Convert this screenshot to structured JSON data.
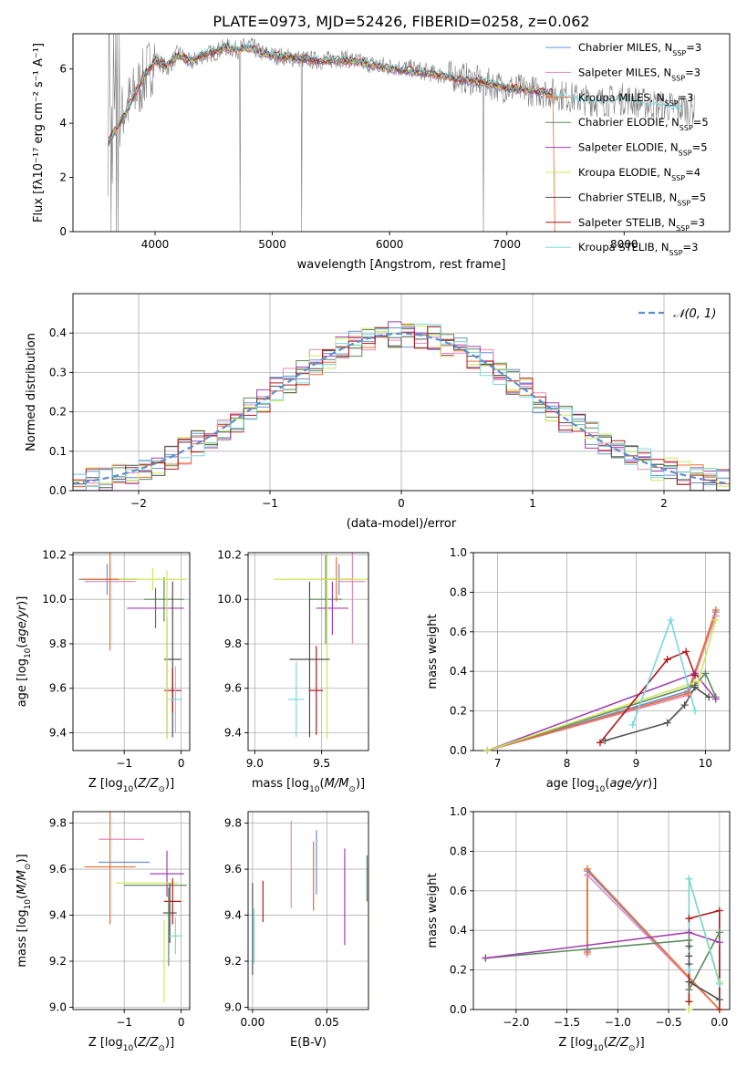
{
  "title": "PLATE=0973, MJD=52426, FIBERID=0258, z=0.062",
  "colors": [
    "#6a8fd6",
    "#e889b5",
    "#e87030",
    "#5d8a5d",
    "#a040b0",
    "#d0e858",
    "#505050",
    "#b01818",
    "#78d8e0"
  ],
  "chart_data": [
    {
      "id": "spectrum",
      "type": "line",
      "xlabel": "wavelength [Angstrom, rest frame]",
      "ylabel": "Flux [f$_\\lambda$10$^{-17}$ erg cm$^{-2}$ s$^{-1}$ A$^{-1}$]",
      "ylabel_display": "Flux [fλ10⁻¹⁷ erg cm⁻² s⁻¹ A⁻¹]",
      "xlim": [
        3300,
        8900
      ],
      "ylim": [
        0,
        7.3
      ],
      "xticks": [
        4000,
        5000,
        6000,
        7000,
        8000
      ],
      "yticks": [
        0,
        2,
        4,
        6
      ],
      "grid": false,
      "legend_position": "top-right",
      "observed": {
        "x": [
          3600,
          3700,
          3800,
          3900,
          4000,
          4100,
          4200,
          4300,
          4400,
          4500,
          4600,
          4700,
          4800,
          4900,
          5000,
          5200,
          5400,
          5600,
          5800,
          6000,
          6200,
          6400,
          6600,
          6800,
          7000,
          7200,
          7400,
          7600,
          7800,
          8000,
          8200,
          8400,
          8600
        ],
        "y": [
          3.5,
          4.2,
          4.9,
          5.6,
          6.4,
          6.0,
          6.6,
          6.2,
          6.5,
          6.6,
          6.8,
          6.7,
          6.9,
          6.6,
          6.5,
          6.4,
          6.3,
          6.4,
          6.2,
          6.1,
          6.0,
          5.8,
          5.7,
          5.5,
          5.3,
          5.2,
          5.1,
          4.9,
          4.8,
          4.9,
          4.7,
          4.6,
          4.5
        ]
      },
      "series": [
        {
          "name": "Chabrier MILES, N$_{SSP}$=3",
          "label_main": "Chabrier MILES, N",
          "label_sub": "SSP",
          "label_end": "=3"
        },
        {
          "name": "Salpeter MILES, N$_{SSP}$=3",
          "label_main": "Salpeter MILES, N",
          "label_sub": "SSP",
          "label_end": "=3"
        },
        {
          "name": "Kroupa MILES, N$_{SSP}$=3",
          "label_main": "Kroupa MILES, N",
          "label_sub": "SSP",
          "label_end": "=3"
        },
        {
          "name": "Chabrier ELODIE, N$_{SSP}$=5",
          "label_main": "Chabrier ELODIE, N",
          "label_sub": "SSP",
          "label_end": "=5"
        },
        {
          "name": "Salpeter ELODIE, N$_{SSP}$=5",
          "label_main": "Salpeter ELODIE, N",
          "label_sub": "SSP",
          "label_end": "=5"
        },
        {
          "name": "Kroupa ELODIE, N$_{SSP}$=4",
          "label_main": "Kroupa ELODIE, N",
          "label_sub": "SSP",
          "label_end": "=4"
        },
        {
          "name": "Chabrier STELIB, N$_{SSP}$=5",
          "label_main": "Chabrier STELIB, N",
          "label_sub": "SSP",
          "label_end": "=5"
        },
        {
          "name": "Salpeter STELIB, N$_{SSP}$=3",
          "label_main": "Salpeter STELIB, N",
          "label_sub": "SSP",
          "label_end": "=3"
        },
        {
          "name": "Kroupa STELIB, N$_{SSP}$=3",
          "label_main": "Kroupa STELIB, N",
          "label_sub": "SSP",
          "label_end": "=3"
        }
      ],
      "model_curve": {
        "x": [
          3600,
          3700,
          3800,
          3900,
          4000,
          4100,
          4200,
          4300,
          4400,
          4500,
          4600,
          4700,
          4800,
          4900,
          5000,
          5200,
          5400,
          5600,
          5800,
          6000,
          6200,
          6400,
          6600,
          6800,
          7000,
          7200,
          7400
        ],
        "y": [
          3.3,
          4.0,
          4.8,
          5.7,
          6.3,
          6.1,
          6.5,
          6.3,
          6.5,
          6.6,
          6.8,
          6.7,
          6.8,
          6.6,
          6.5,
          6.4,
          6.3,
          6.3,
          6.2,
          6.0,
          5.9,
          5.8,
          5.6,
          5.5,
          5.3,
          5.2,
          5.1
        ]
      }
    },
    {
      "id": "residuals",
      "type": "histogram",
      "xlabel": "(data-model)/error",
      "ylabel": "Normed distribution",
      "xlim": [
        -2.5,
        2.5
      ],
      "ylim": [
        0,
        0.5
      ],
      "xticks": [
        -2,
        -1,
        0,
        1,
        2
      ],
      "yticks": [
        0.0,
        0.1,
        0.2,
        0.3,
        0.4
      ],
      "grid": true,
      "legend_position": "top-right",
      "reference": {
        "name": "$\\mathcal{N}(0,1)$",
        "label_display": "𝒩(0, 1)",
        "mean": 0,
        "sigma": 1
      }
    },
    {
      "id": "age_vs_Z",
      "type": "errorbar",
      "xlabel": "Z [log$_{10}$($Z/Z_\\odot$)]",
      "ylabel": "age  [log$_{10}$($age/yr$)]",
      "xlim": [
        -1.9,
        0.15
      ],
      "ylim": [
        9.32,
        10.21
      ],
      "xticks": [
        -1,
        0
      ],
      "yticks": [
        9.4,
        9.6,
        9.8,
        10.0,
        10.2
      ],
      "grid": true,
      "points": [
        {
          "series": 0,
          "x": -1.3,
          "y": 10.09,
          "xerr": 0.5,
          "yerr": 0.07
        },
        {
          "series": 1,
          "x": -1.25,
          "y": 10.08,
          "xerr": 0.45,
          "yerr": 0.08
        },
        {
          "series": 2,
          "x": -1.25,
          "y": 10.09,
          "xerr": 0.5,
          "yerr": 0.32
        },
        {
          "series": 3,
          "x": -0.3,
          "y": 10.0,
          "xerr": 0.35,
          "yerr": 0.1
        },
        {
          "series": 4,
          "x": -0.45,
          "y": 9.96,
          "xerr": 0.5,
          "yerr": 0.09
        },
        {
          "series": 5,
          "x": -0.5,
          "y": 10.09,
          "xerr": 0.6,
          "yerr": 0.05
        },
        {
          "series": 6,
          "x": -0.15,
          "y": 9.73,
          "xerr": 0.15,
          "yerr": 0.35
        },
        {
          "series": 7,
          "x": -0.15,
          "y": 9.59,
          "xerr": 0.15,
          "yerr": 0.1
        },
        {
          "series": 8,
          "x": -0.1,
          "y": 9.55,
          "xerr": 0.12,
          "yerr": 0.15
        },
        {
          "series": 6,
          "x": -0.25,
          "y": 9.65,
          "xerr": 0.0,
          "yerr": 0.27
        },
        {
          "series": 5,
          "x": -0.25,
          "y": 9.75,
          "xerr": 0.0,
          "yerr": 0.38
        }
      ]
    },
    {
      "id": "age_vs_mass",
      "type": "errorbar",
      "xlabel": "mass [log$_{10}$($M/M_\\odot$)]",
      "ylabel": "",
      "xlim": [
        8.95,
        9.85
      ],
      "ylim": [
        9.32,
        10.21
      ],
      "xticks": [
        9.0,
        9.5
      ],
      "yticks": [
        9.4,
        9.6,
        9.8,
        10.0,
        10.2
      ],
      "grid": true,
      "points": [
        {
          "series": 0,
          "x": 9.63,
          "y": 10.09,
          "xerr": 0.1,
          "yerr": 0.07
        },
        {
          "series": 1,
          "x": 9.73,
          "y": 10.08,
          "xerr": 0.1,
          "yerr": 0.28
        },
        {
          "series": 2,
          "x": 9.61,
          "y": 10.09,
          "xerr": 0.12,
          "yerr": 0.1
        },
        {
          "series": 3,
          "x": 9.53,
          "y": 10.0,
          "xerr": 0.12,
          "yerr": 0.2
        },
        {
          "series": 4,
          "x": 9.58,
          "y": 9.96,
          "xerr": 0.12,
          "yerr": 0.12
        },
        {
          "series": 5,
          "x": 9.54,
          "y": 10.09,
          "xerr": 0.4,
          "yerr": 0.72
        },
        {
          "series": 6,
          "x": 9.41,
          "y": 9.73,
          "xerr": 0.15,
          "yerr": 0.35
        },
        {
          "series": 7,
          "x": 9.46,
          "y": 9.59,
          "xerr": 0.05,
          "yerr": 0.2
        },
        {
          "series": 8,
          "x": 9.31,
          "y": 9.55,
          "xerr": 0.06,
          "yerr": 0.17
        }
      ]
    },
    {
      "id": "massweight_vs_age",
      "type": "line",
      "xlabel": "age  [log$_{10}$($age/yr$)]",
      "ylabel": "mass weight",
      "xlim": [
        6.65,
        10.35
      ],
      "ylim": [
        0,
        1.0
      ],
      "xticks": [
        7,
        8,
        9,
        10
      ],
      "yticks": [
        0.0,
        0.2,
        0.4,
        0.6,
        0.8,
        1.0
      ],
      "grid": true,
      "series_points": [
        {
          "series": 0,
          "x": [
            6.85,
            9.75,
            10.15
          ],
          "y": [
            0.0,
            0.3,
            0.7
          ]
        },
        {
          "series": 1,
          "x": [
            6.85,
            9.75,
            10.15
          ],
          "y": [
            0.0,
            0.28,
            0.68
          ]
        },
        {
          "series": 2,
          "x": [
            6.85,
            9.75,
            10.15
          ],
          "y": [
            0.0,
            0.29,
            0.71
          ]
        },
        {
          "series": 3,
          "x": [
            6.85,
            9.85,
            10.0,
            10.15
          ],
          "y": [
            0.0,
            0.33,
            0.39,
            0.27
          ]
        },
        {
          "series": 4,
          "x": [
            6.85,
            9.85,
            10.15
          ],
          "y": [
            0.0,
            0.39,
            0.26
          ]
        },
        {
          "series": 5,
          "x": [
            6.85,
            9.9,
            10.15
          ],
          "y": [
            0.0,
            0.35,
            0.66
          ]
        },
        {
          "series": 6,
          "x": [
            8.55,
            9.45,
            9.7,
            9.85,
            10.05
          ],
          "y": [
            0.05,
            0.14,
            0.23,
            0.32,
            0.27
          ]
        },
        {
          "series": 7,
          "x": [
            8.48,
            9.45,
            9.72,
            9.85
          ],
          "y": [
            0.04,
            0.46,
            0.5,
            0.38
          ]
        },
        {
          "series": 8,
          "x": [
            8.95,
            9.5,
            9.85
          ],
          "y": [
            0.13,
            0.66,
            0.2
          ]
        }
      ]
    },
    {
      "id": "mass_vs_Z",
      "type": "errorbar",
      "xlabel": "Z [log$_{10}$($Z/Z_\\odot$)]",
      "ylabel": "mass [log$_{10}$($M/M_\\odot$)]",
      "xlim": [
        -1.9,
        0.15
      ],
      "ylim": [
        8.99,
        9.85
      ],
      "xticks": [
        -1,
        0
      ],
      "yticks": [
        9.0,
        9.2,
        9.4,
        9.6,
        9.8
      ],
      "grid": true,
      "points": [
        {
          "series": 0,
          "x": -1.0,
          "y": 9.63,
          "xerr": 0.45,
          "yerr": 0.0
        },
        {
          "series": 1,
          "x": -1.05,
          "y": 9.73,
          "xerr": 0.4,
          "yerr": 0.0
        },
        {
          "series": 2,
          "x": -1.25,
          "y": 9.61,
          "xerr": 0.45,
          "yerr": 0.25
        },
        {
          "series": 3,
          "x": -0.45,
          "y": 9.53,
          "xerr": 0.55,
          "yerr": 0.0
        },
        {
          "series": 4,
          "x": -0.25,
          "y": 9.58,
          "xerr": 0.3,
          "yerr": 0.1
        },
        {
          "series": 5,
          "x": -0.6,
          "y": 9.54,
          "xerr": 0.55,
          "yerr": 0.0
        },
        {
          "series": 6,
          "x": -0.2,
          "y": 9.41,
          "xerr": 0.12,
          "yerr": 0.13
        },
        {
          "series": 7,
          "x": -0.15,
          "y": 9.46,
          "xerr": 0.15,
          "yerr": 0.1
        },
        {
          "series": 8,
          "x": -0.1,
          "y": 9.31,
          "xerr": 0.12,
          "yerr": 0.08
        },
        {
          "series": 5,
          "x": -0.3,
          "y": 9.2,
          "xerr": 0.0,
          "yerr": 0.18
        },
        {
          "series": 3,
          "x": -0.22,
          "y": 9.35,
          "xerr": 0.0,
          "yerr": 0.17
        }
      ]
    },
    {
      "id": "mass_vs_EBV",
      "type": "errorbar",
      "xlabel": "E(B-V)",
      "ylabel": "",
      "xlim": [
        -0.003,
        0.078
      ],
      "ylim": [
        8.99,
        9.85
      ],
      "xticks": [
        0.0,
        0.05
      ],
      "yticks": [
        9.0,
        9.2,
        9.4,
        9.6,
        9.8
      ],
      "grid": true,
      "points": [
        {
          "series": 0,
          "x": 0.043,
          "y": 9.63,
          "xerr": 0,
          "yerr": 0.14
        },
        {
          "series": 1,
          "x": 0.026,
          "y": 9.62,
          "xerr": 0,
          "yerr": 0.19
        },
        {
          "series": 2,
          "x": 0.041,
          "y": 9.57,
          "xerr": 0,
          "yerr": 0.15
        },
        {
          "series": 3,
          "x": 0.077,
          "y": 9.56,
          "xerr": 0,
          "yerr": 0.1
        },
        {
          "series": 4,
          "x": 0.062,
          "y": 9.48,
          "xerr": 0,
          "yerr": 0.21
        },
        {
          "series": 5,
          "x": 0.078,
          "y": 9.3,
          "xerr": 0,
          "yerr": 0.28
        },
        {
          "series": 6,
          "x": 0.0,
          "y": 9.34,
          "xerr": 0,
          "yerr": 0.2
        },
        {
          "series": 7,
          "x": 0.007,
          "y": 9.46,
          "xerr": 0,
          "yerr": 0.09
        },
        {
          "series": 8,
          "x": 0.001,
          "y": 9.31,
          "xerr": 0,
          "yerr": 0.12
        }
      ]
    },
    {
      "id": "massweight_vs_Z",
      "type": "line",
      "xlabel": "Z [log$_{10}$($Z/Z_\\odot$)]",
      "ylabel": "mass weight",
      "xlim": [
        -2.42,
        0.1
      ],
      "ylim": [
        0,
        1.0
      ],
      "xticks": [
        -2.0,
        -1.5,
        -1.0,
        -0.5,
        0.0
      ],
      "yticks": [
        0.0,
        0.2,
        0.4,
        0.6,
        0.8,
        1.0
      ],
      "grid": true,
      "series_points": [
        {
          "series": 0,
          "x": [
            -1.3,
            -1.3,
            0.0
          ],
          "y": [
            0.3,
            0.7,
            0.0
          ]
        },
        {
          "series": 1,
          "x": [
            -1.3,
            -1.3,
            0.0
          ],
          "y": [
            0.28,
            0.68,
            0.0
          ]
        },
        {
          "series": 2,
          "x": [
            -1.3,
            -1.3,
            0.0
          ],
          "y": [
            0.29,
            0.71,
            0.0
          ]
        },
        {
          "series": 3,
          "x": [
            -2.3,
            -0.3,
            -0.3,
            0.0,
            0.0
          ],
          "y": [
            0.26,
            0.35,
            0.1,
            0.39,
            0.0
          ]
        },
        {
          "series": 4,
          "x": [
            -2.3,
            -0.3,
            0.0,
            0.0
          ],
          "y": [
            0.26,
            0.39,
            0.34,
            0.0
          ]
        },
        {
          "series": 5,
          "x": [
            -0.3,
            -0.3,
            0.0,
            0.0
          ],
          "y": [
            0.0,
            0.66,
            0.14,
            0.0
          ]
        },
        {
          "series": 6,
          "x": [
            -0.3,
            -0.3,
            -0.3,
            -0.3,
            0.0
          ],
          "y": [
            0.23,
            0.27,
            0.32,
            0.14,
            0.05
          ]
        },
        {
          "series": 7,
          "x": [
            -0.3,
            -0.3,
            0.0,
            0.0
          ],
          "y": [
            0.04,
            0.46,
            0.5,
            0.0
          ]
        },
        {
          "series": 8,
          "x": [
            -0.3,
            -0.3,
            0.0
          ],
          "y": [
            0.2,
            0.66,
            0.13
          ]
        }
      ]
    }
  ]
}
